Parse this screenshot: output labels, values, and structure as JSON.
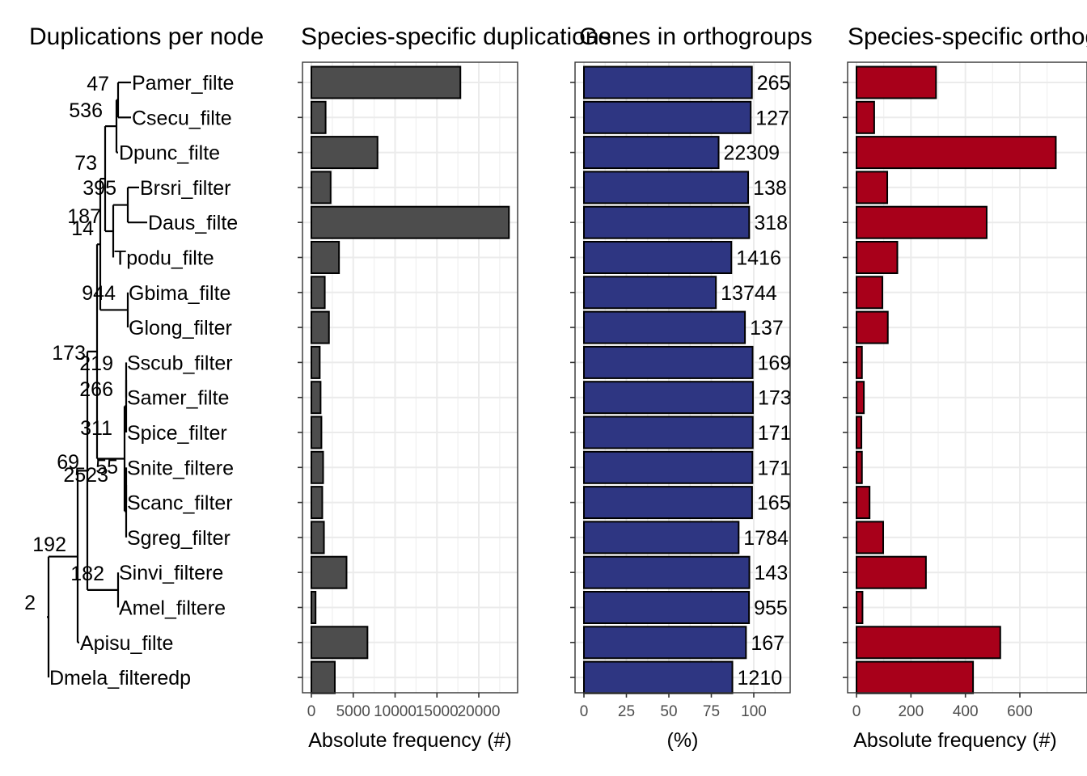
{
  "tree": {
    "title": "Duplications per node",
    "tips": [
      "Pamer_filte",
      "Csecu_filte",
      "Dpunc_filte",
      "Brsri_filter",
      "Daus_filte",
      "Tpodu_filte",
      "Gbima_filte",
      "Glong_filter",
      "Sscub_filter",
      "Samer_filte",
      "Spice_filter",
      "Snite_filtere",
      "Scanc_filter",
      "Sgreg_filter",
      "Sinvi_filtere",
      "Amel_filtere",
      "Apisu_filte",
      "Dmela_filteredp"
    ],
    "node_labels": [
      "47",
      "536",
      "73",
      "395",
      "187",
      "14",
      "944",
      "173",
      "219",
      "266",
      "311",
      "69",
      "55",
      "2523",
      "192",
      "182",
      "2"
    ]
  },
  "chart_data": [
    {
      "type": "bar",
      "orientation": "horizontal",
      "title": "Species-specific duplications",
      "xlabel": "Absolute frequency (#)",
      "ylabel": "",
      "xlim": [
        0,
        24500
      ],
      "xticks": [
        0,
        5000,
        10000,
        15000,
        20000
      ],
      "xtick_labels": [
        "0",
        "5000",
        "10000",
        "15000",
        "20000"
      ],
      "grid": true,
      "bar_color": "#4d4d4d",
      "values": [
        17800,
        1700,
        7900,
        2300,
        23600,
        3300,
        1600,
        2100,
        1000,
        1100,
        1200,
        1400,
        1300,
        1500,
        4200,
        500,
        6700,
        2800
      ]
    },
    {
      "type": "bar",
      "orientation": "horizontal",
      "title": "Genes in orthogroups",
      "xlabel": "(%)",
      "ylabel": "",
      "xlim": [
        0,
        115
      ],
      "xticks": [
        0,
        25,
        50,
        75,
        100
      ],
      "xtick_labels": [
        "0",
        "25",
        "50",
        "75",
        "100"
      ],
      "grid": true,
      "bar_color": "#2e3682",
      "values": [
        98.9,
        98.2,
        79.3,
        96.7,
        97.3,
        86.8,
        77.7,
        94.8,
        99.3,
        99.5,
        99.4,
        99.2,
        99.0,
        91.1,
        97.4,
        97.2,
        95.4,
        87.4
      ],
      "value_labels": [
        "265",
        "127",
        "22309",
        "138",
        "318",
        "1416",
        "13744",
        "137",
        "169",
        "173",
        "171",
        "171",
        "165",
        "1784",
        "143",
        "955",
        "167",
        "1210"
      ]
    },
    {
      "type": "bar",
      "orientation": "horizontal",
      "title": "Species-specific orthogroups",
      "xlabel": "Absolute frequency (#)",
      "ylabel": "",
      "xlim": [
        0,
        765
      ],
      "xticks": [
        0,
        200,
        400,
        600
      ],
      "xtick_labels": [
        "0",
        "200",
        "400",
        "600"
      ],
      "grid": true,
      "bar_color": "#a8001a",
      "values": [
        292,
        65,
        732,
        113,
        478,
        150,
        95,
        115,
        20,
        27,
        18,
        20,
        48,
        98,
        255,
        22,
        528,
        428
      ]
    }
  ]
}
